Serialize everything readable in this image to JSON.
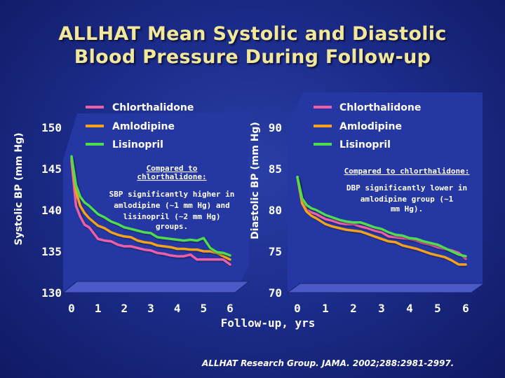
{
  "title": {
    "line1": "ALLHAT Mean Systolic and Diastolic",
    "line2": "Blood Pressure During Follow-up"
  },
  "citation": "ALLHAT Research Group. JAMA. 2002;288:2981-2997.",
  "shared_xlabel": "Follow-up, yrs",
  "colors": {
    "chlorthalidone": "#ee5fa7",
    "amlodipine": "#f5a21b",
    "lisinopril": "#4fdc4f",
    "panel": "#2437a2",
    "floor": "#4a5ac8",
    "title": "#f3e79a"
  },
  "chart_data": [
    {
      "type": "line",
      "ylabel": "Systolic BP (mm Hg)",
      "xlabel": "",
      "x_ticks": [
        "0",
        "1",
        "2",
        "3",
        "4",
        "5",
        "6"
      ],
      "y_ticks": [
        "130",
        "135",
        "140",
        "145",
        "150"
      ],
      "xlim": [
        0,
        6
      ],
      "ylim": [
        130,
        150
      ],
      "legend": [
        "Chlorthalidone",
        "Amlodipine",
        "Lisinopril"
      ],
      "annotation": [
        "Compared to",
        "chlorthalidone:",
        "SBP significantly higher in",
        "amlodipine (~1 mm Hg) and",
        "lisinopril (~2 mm Hg)",
        "groups."
      ],
      "series": [
        {
          "name": "Chlorthalidone",
          "color": "#ee5fa7",
          "x": [
            0,
            0.17,
            0.33,
            0.5,
            0.67,
            1,
            1.25,
            1.5,
            1.75,
            2,
            2.25,
            2.5,
            2.75,
            3,
            3.25,
            3.5,
            3.75,
            4,
            4.25,
            4.5,
            4.75,
            5,
            5.25,
            5.5,
            5.75,
            6
          ],
          "y": [
            146.0,
            140.5,
            139.2,
            138.2,
            137.9,
            136.5,
            136.3,
            136.2,
            135.8,
            135.6,
            135.6,
            135.4,
            135.2,
            135.1,
            134.8,
            134.7,
            134.5,
            134.4,
            134.4,
            134.6,
            134.0,
            134.0,
            134.0,
            134.0,
            134.0,
            133.4
          ]
        },
        {
          "name": "Amlodipine",
          "color": "#f5a21b",
          "x": [
            0,
            0.17,
            0.33,
            0.5,
            0.67,
            1,
            1.25,
            1.5,
            1.75,
            2,
            2.25,
            2.5,
            2.75,
            3,
            3.25,
            3.5,
            3.75,
            4,
            4.25,
            4.5,
            4.75,
            5,
            5.25,
            5.5,
            5.75,
            6
          ],
          "y": [
            146.3,
            142.2,
            140.5,
            139.6,
            139.0,
            138.1,
            137.8,
            137.3,
            137.0,
            136.8,
            136.7,
            136.3,
            136.1,
            136.0,
            135.7,
            135.6,
            135.5,
            135.3,
            135.3,
            135.2,
            135.2,
            135.0,
            135.0,
            134.8,
            134.4,
            134.0
          ]
        },
        {
          "name": "Lisinopril",
          "color": "#4fdc4f",
          "x": [
            0,
            0.17,
            0.33,
            0.5,
            0.67,
            1,
            1.25,
            1.5,
            1.75,
            2,
            2.25,
            2.5,
            2.75,
            3,
            3.25,
            3.5,
            3.75,
            4,
            4.25,
            4.5,
            4.75,
            5,
            5.25,
            5.5,
            5.75,
            6
          ],
          "y": [
            146.5,
            143.0,
            141.6,
            140.9,
            140.5,
            139.5,
            139.1,
            138.6,
            138.3,
            137.9,
            137.7,
            137.5,
            137.3,
            137.2,
            136.7,
            136.6,
            136.5,
            136.4,
            136.3,
            136.4,
            136.3,
            136.6,
            135.4,
            134.9,
            134.8,
            134.5
          ]
        }
      ]
    },
    {
      "type": "line",
      "ylabel": "Diastolic BP (mm Hg)",
      "xlabel": "Follow-up, yrs",
      "x_ticks": [
        "0",
        "1",
        "2",
        "3",
        "4",
        "5",
        "6"
      ],
      "y_ticks": [
        "70",
        "75",
        "80",
        "85",
        "90"
      ],
      "xlim": [
        0,
        6
      ],
      "ylim": [
        70,
        90
      ],
      "legend": [
        "Chlorthalidone",
        "Amlodipine",
        "Lisinopril"
      ],
      "annotation": [
        "Compared to chlorthalidone:",
        "DBP significantly lower in",
        "amlodipine group (~1",
        "mm Hg)."
      ],
      "series": [
        {
          "name": "Chlorthalidone",
          "color": "#ee5fa7",
          "x": [
            0,
            0.17,
            0.33,
            0.5,
            0.67,
            1,
            1.25,
            1.5,
            1.75,
            2,
            2.25,
            2.5,
            2.75,
            3,
            3.25,
            3.5,
            3.75,
            4,
            4.25,
            4.5,
            4.75,
            5,
            5.25,
            5.5,
            5.75,
            6
          ],
          "y": [
            84.0,
            81.0,
            80.0,
            79.7,
            79.5,
            78.9,
            78.7,
            78.4,
            78.3,
            78.3,
            78.0,
            77.8,
            77.5,
            77.3,
            76.8,
            76.7,
            76.6,
            76.5,
            76.3,
            76.0,
            75.8,
            75.5,
            75.3,
            75.1,
            74.8,
            74.1
          ]
        },
        {
          "name": "Amlodipine",
          "color": "#f5a21b",
          "x": [
            0,
            0.17,
            0.33,
            0.5,
            0.67,
            1,
            1.25,
            1.5,
            1.75,
            2,
            2.25,
            2.5,
            2.75,
            3,
            3.25,
            3.5,
            3.75,
            4,
            4.25,
            4.5,
            4.75,
            5,
            5.25,
            5.5,
            5.75,
            6
          ],
          "y": [
            84.0,
            80.8,
            79.8,
            79.3,
            79.0,
            78.3,
            78.0,
            77.8,
            77.6,
            77.5,
            77.4,
            77.1,
            76.8,
            76.5,
            76.2,
            76.1,
            75.7,
            75.5,
            75.3,
            75.0,
            74.7,
            74.5,
            74.3,
            73.9,
            73.4,
            73.4
          ]
        },
        {
          "name": "Lisinopril",
          "color": "#4fdc4f",
          "x": [
            0,
            0.17,
            0.33,
            0.5,
            0.67,
            1,
            1.25,
            1.5,
            1.75,
            2,
            2.25,
            2.5,
            2.75,
            3,
            3.25,
            3.5,
            3.75,
            4,
            4.25,
            4.5,
            4.75,
            5,
            5.25,
            5.5,
            5.75,
            6
          ],
          "y": [
            84.0,
            81.4,
            80.6,
            80.2,
            80.0,
            79.4,
            79.1,
            78.8,
            78.6,
            78.5,
            78.5,
            78.2,
            77.9,
            77.7,
            77.3,
            77.0,
            76.9,
            76.6,
            76.5,
            76.2,
            76.0,
            75.8,
            75.4,
            75.0,
            74.6,
            74.4
          ]
        }
      ]
    }
  ]
}
